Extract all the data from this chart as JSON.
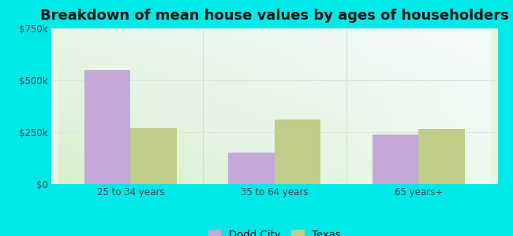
{
  "title": "Breakdown of mean house values by ages of householders",
  "categories": [
    "25 to 34 years",
    "35 to 64 years",
    "65 years+"
  ],
  "dodd_city_values": [
    550000,
    150000,
    237000
  ],
  "texas_values": [
    270000,
    310000,
    265000
  ],
  "dodd_city_color": "#c4a8d8",
  "texas_color": "#c0cc8a",
  "ylim": [
    0,
    750000
  ],
  "yticks": [
    0,
    250000,
    500000,
    750000
  ],
  "ytick_labels": [
    "$0",
    "$250k",
    "$500k",
    "$750k"
  ],
  "legend_labels": [
    "Dodd City",
    "Texas"
  ],
  "outer_bg": "#00e8e8",
  "bar_width": 0.32,
  "title_fontsize": 13,
  "tick_fontsize": 8.5,
  "legend_fontsize": 9.5
}
